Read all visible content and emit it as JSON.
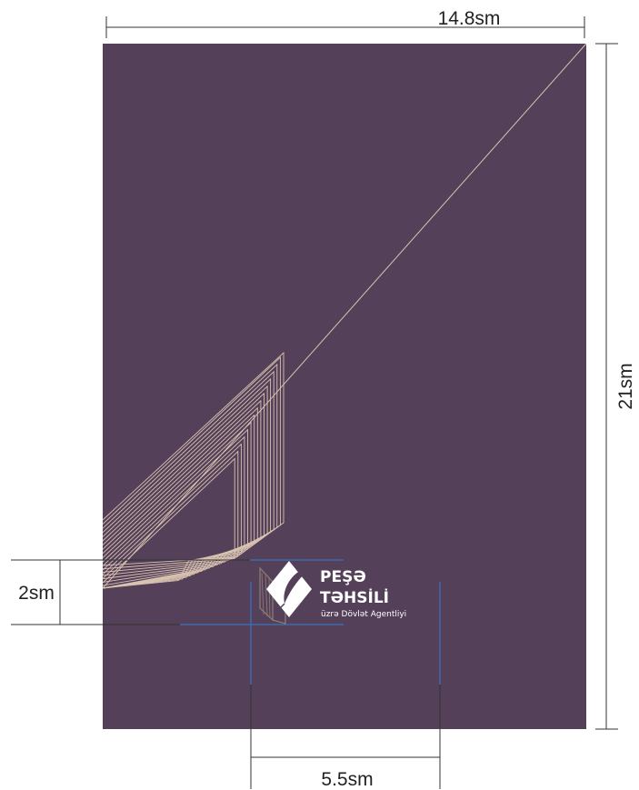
{
  "colors": {
    "page_background": "#55405a",
    "pattern_line": "#d9c3b0",
    "guide_line": "#2f7fd0",
    "dimension_line": "#333333",
    "logo_emblem": "#8a7a72",
    "logo_text": "#ffffff"
  },
  "dimensions": {
    "width_label": "14.8sm",
    "height_label": "21sm",
    "logo_height_label": "2sm",
    "logo_width_label": "5.5sm"
  },
  "logo": {
    "title_line1": "PEŞƏ",
    "title_line2": "TƏHSİLİ",
    "subtitle": "üzrə Dövlət Agentliyi",
    "emblem_icon": "quill-book-emblem-icon"
  }
}
